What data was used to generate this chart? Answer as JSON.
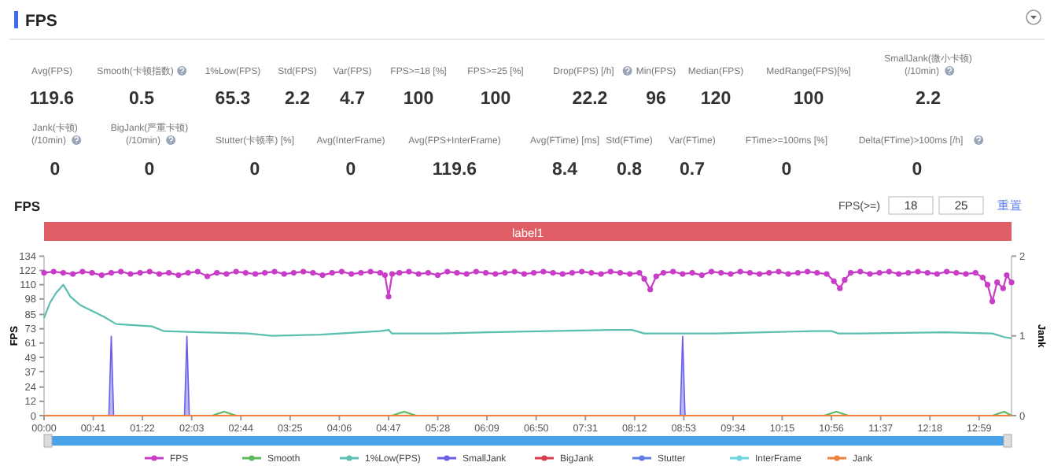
{
  "chart_data": [
    {
      "type": "other",
      "title": "FPS",
      "categories": [
        "Avg(FPS)",
        "Smooth(卡顿指数)",
        "1%Low(FPS)",
        "Std(FPS)",
        "Var(FPS)",
        "FPS>=18 [%]",
        "FPS>=25 [%]",
        "Drop(FPS) [/h]",
        "Min(FPS)",
        "Median(FPS)",
        "MedRange(FPS)[%]",
        "SmallJank(微小卡顿)\n(/10min)",
        "Jank(卡顿)\n(/10min)",
        "BigJank(严重卡顿)\n(/10min)",
        "Stutter(卡顿率) [%]",
        "Avg(InterFrame)",
        "Avg(FPS+InterFrame)",
        "Avg(FTime) [ms]",
        "Std(FTime)",
        "Var(FTime)",
        "FTime>=100ms [%]",
        "Delta(FTime)>100ms [/h]"
      ],
      "values": [
        119.6,
        0.5,
        65.3,
        2.2,
        4.7,
        100,
        100,
        22.2,
        96,
        120,
        100,
        2.2,
        0,
        0,
        0,
        0,
        119.6,
        8.4,
        0.8,
        0.7,
        0,
        0
      ],
      "data_labels": true
    },
    {
      "type": "line",
      "title": "FPS",
      "ylabel": "FPS",
      "y2label": "Jank",
      "legend": "bottom",
      "annotations": [
        "FPS(>=)",
        "18",
        "25",
        "重置",
        "label1"
      ],
      "xlim": [
        0,
        806
      ],
      "ylim": [
        0,
        134
      ],
      "y2lim": [
        0,
        2
      ],
      "xticks": [
        {
          "value": 0,
          "label": "00:00"
        },
        {
          "value": 41,
          "label": "00:41"
        },
        {
          "value": 82,
          "label": "01:22"
        },
        {
          "value": 123,
          "label": "02:03"
        },
        {
          "value": 164,
          "label": "02:44"
        },
        {
          "value": 205,
          "label": "03:25"
        },
        {
          "value": 246,
          "label": "04:06"
        },
        {
          "value": 287,
          "label": "04:47"
        },
        {
          "value": 328,
          "label": "05:28"
        },
        {
          "value": 369,
          "label": "06:09"
        },
        {
          "value": 410,
          "label": "06:50"
        },
        {
          "value": 451,
          "label": "07:31"
        },
        {
          "value": 492,
          "label": "08:12"
        },
        {
          "value": 533,
          "label": "08:53"
        },
        {
          "value": 574,
          "label": "09:34"
        },
        {
          "value": 615,
          "label": "10:15"
        },
        {
          "value": 656,
          "label": "10:56"
        },
        {
          "value": 697,
          "label": "11:37"
        },
        {
          "value": 738,
          "label": "12:18"
        },
        {
          "value": 779,
          "label": "12:59"
        }
      ],
      "yticks": [
        0,
        12,
        24,
        37,
        49,
        61,
        73,
        85,
        98,
        110,
        122,
        134
      ],
      "y2ticks": [
        0,
        1,
        2
      ],
      "series": [
        {
          "name": "FPS",
          "color": "#c83cc8",
          "marker": "circle",
          "x": [
            0,
            8,
            16,
            24,
            32,
            40,
            48,
            56,
            64,
            72,
            80,
            88,
            96,
            104,
            112,
            120,
            128,
            136,
            144,
            152,
            160,
            168,
            176,
            184,
            192,
            200,
            208,
            216,
            224,
            232,
            240,
            248,
            256,
            264,
            272,
            280,
            284,
            287,
            290,
            296,
            304,
            312,
            320,
            328,
            336,
            344,
            352,
            360,
            368,
            376,
            384,
            392,
            400,
            408,
            416,
            424,
            432,
            440,
            448,
            456,
            464,
            472,
            480,
            488,
            496,
            500,
            505,
            510,
            516,
            524,
            532,
            540,
            548,
            556,
            564,
            572,
            580,
            588,
            596,
            604,
            612,
            620,
            628,
            636,
            644,
            652,
            658,
            663,
            667,
            672,
            680,
            688,
            696,
            704,
            712,
            720,
            728,
            736,
            744,
            752,
            760,
            768,
            776,
            782,
            786,
            790,
            794,
            799,
            802,
            806
          ],
          "values": [
            120,
            121,
            120,
            119,
            121,
            120,
            118,
            120,
            121,
            119,
            120,
            121,
            119,
            120,
            118,
            120,
            121,
            117,
            120,
            119,
            121,
            120,
            119,
            120,
            121,
            119,
            120,
            121,
            120,
            118,
            120,
            121,
            119,
            120,
            121,
            120,
            118,
            100,
            119,
            120,
            121,
            119,
            120,
            118,
            121,
            120,
            119,
            121,
            120,
            119,
            120,
            121,
            119,
            120,
            121,
            120,
            119,
            120,
            121,
            120,
            119,
            121,
            120,
            119,
            120,
            115,
            106,
            117,
            120,
            121,
            119,
            120,
            118,
            121,
            120,
            119,
            121,
            120,
            119,
            120,
            121,
            119,
            120,
            121,
            120,
            119,
            113,
            107,
            114,
            120,
            121,
            119,
            120,
            121,
            119,
            120,
            121,
            120,
            119,
            121,
            120,
            119,
            120,
            116,
            110,
            96,
            112,
            107,
            118,
            112
          ]
        },
        {
          "name": "Smooth",
          "color": "#5cb85c",
          "axis": "y2",
          "x": [
            140,
            150,
            160,
            200,
            290,
            300,
            310,
            400,
            650,
            660,
            670,
            700,
            790,
            800,
            806
          ],
          "values": [
            0,
            0.05,
            0,
            null,
            0,
            0.05,
            0,
            null,
            0,
            0.05,
            0,
            null,
            0,
            0.05,
            0
          ]
        },
        {
          "name": "1%Low(FPS)",
          "color": "#5bbfb0",
          "x": [
            0,
            5,
            10,
            16,
            22,
            30,
            40,
            50,
            60,
            75,
            90,
            100,
            130,
            170,
            190,
            230,
            280,
            287,
            290,
            330,
            370,
            420,
            470,
            490,
            500,
            560,
            600,
            640,
            656,
            662,
            680,
            750,
            790,
            800,
            806
          ],
          "values": [
            82,
            95,
            103,
            110,
            100,
            93,
            88,
            83,
            77,
            76,
            75,
            71,
            70,
            69,
            67,
            68,
            71,
            72,
            69,
            69,
            70,
            71,
            72,
            72,
            69,
            69,
            70,
            71,
            71,
            69,
            69,
            70,
            69,
            66,
            65
          ]
        },
        {
          "name": "SmallJank",
          "color": "#6a5de8",
          "axis": "y2",
          "type": "area",
          "x": [
            0,
            54,
            56,
            58,
            117,
            119,
            121,
            530,
            532,
            534,
            806
          ],
          "values": [
            0,
            0,
            1,
            0,
            0,
            1,
            0,
            0,
            1,
            0,
            0
          ]
        },
        {
          "name": "BigJank",
          "color": "#d83c4a",
          "axis": "y2"
        },
        {
          "name": "Stutter",
          "color": "#5a7de8",
          "axis": "y2"
        },
        {
          "name": "InterFrame",
          "color": "#6dd4e0"
        },
        {
          "name": "Jank",
          "color": "#f0803c",
          "axis": "y2",
          "x": [
            0,
            806
          ],
          "values": [
            0,
            0
          ]
        }
      ]
    }
  ]
}
